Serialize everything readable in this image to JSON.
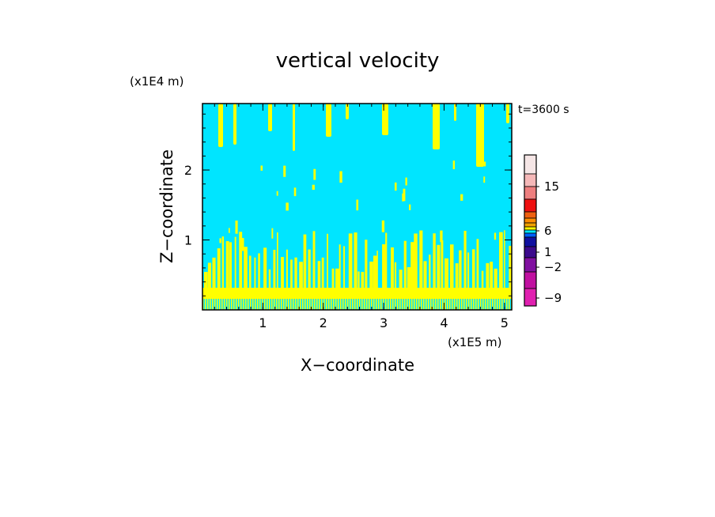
{
  "chart_data": {
    "type": "heatmap",
    "title": "vertical velocity",
    "xlabel": "X−coordinate",
    "ylabel": "Z−coordinate",
    "x_unit": "(x1E5 m)",
    "y_unit": "(x1E4 m)",
    "time_label": "t=3600 s",
    "x_ticks": [
      "1",
      "2",
      "3",
      "4",
      "5"
    ],
    "y_ticks": [
      "1",
      "2"
    ],
    "xlim": [
      0,
      5.12
    ],
    "ylim": [
      0,
      2.95
    ],
    "colorbar": {
      "tick_labels": [
        "15",
        "6",
        "1",
        "−2",
        "−9"
      ],
      "levels": [
        "#f5e6e6",
        "#f5b8b8",
        "#ee7f7f",
        "#ee1010",
        "#ee6010",
        "#ff8c00",
        "#f0a000",
        "#ffff00",
        "#00e5ff",
        "#0060ff",
        "#1010a0",
        "#3c0a8c",
        "#8010a0",
        "#c010a0",
        "#e020b0"
      ]
    },
    "field": {
      "background_color": "#00e5ff",
      "feature_color": "#ffff00",
      "dominant_value_range": "−2 to 1",
      "feature_value_range": "1 to 6"
    }
  }
}
